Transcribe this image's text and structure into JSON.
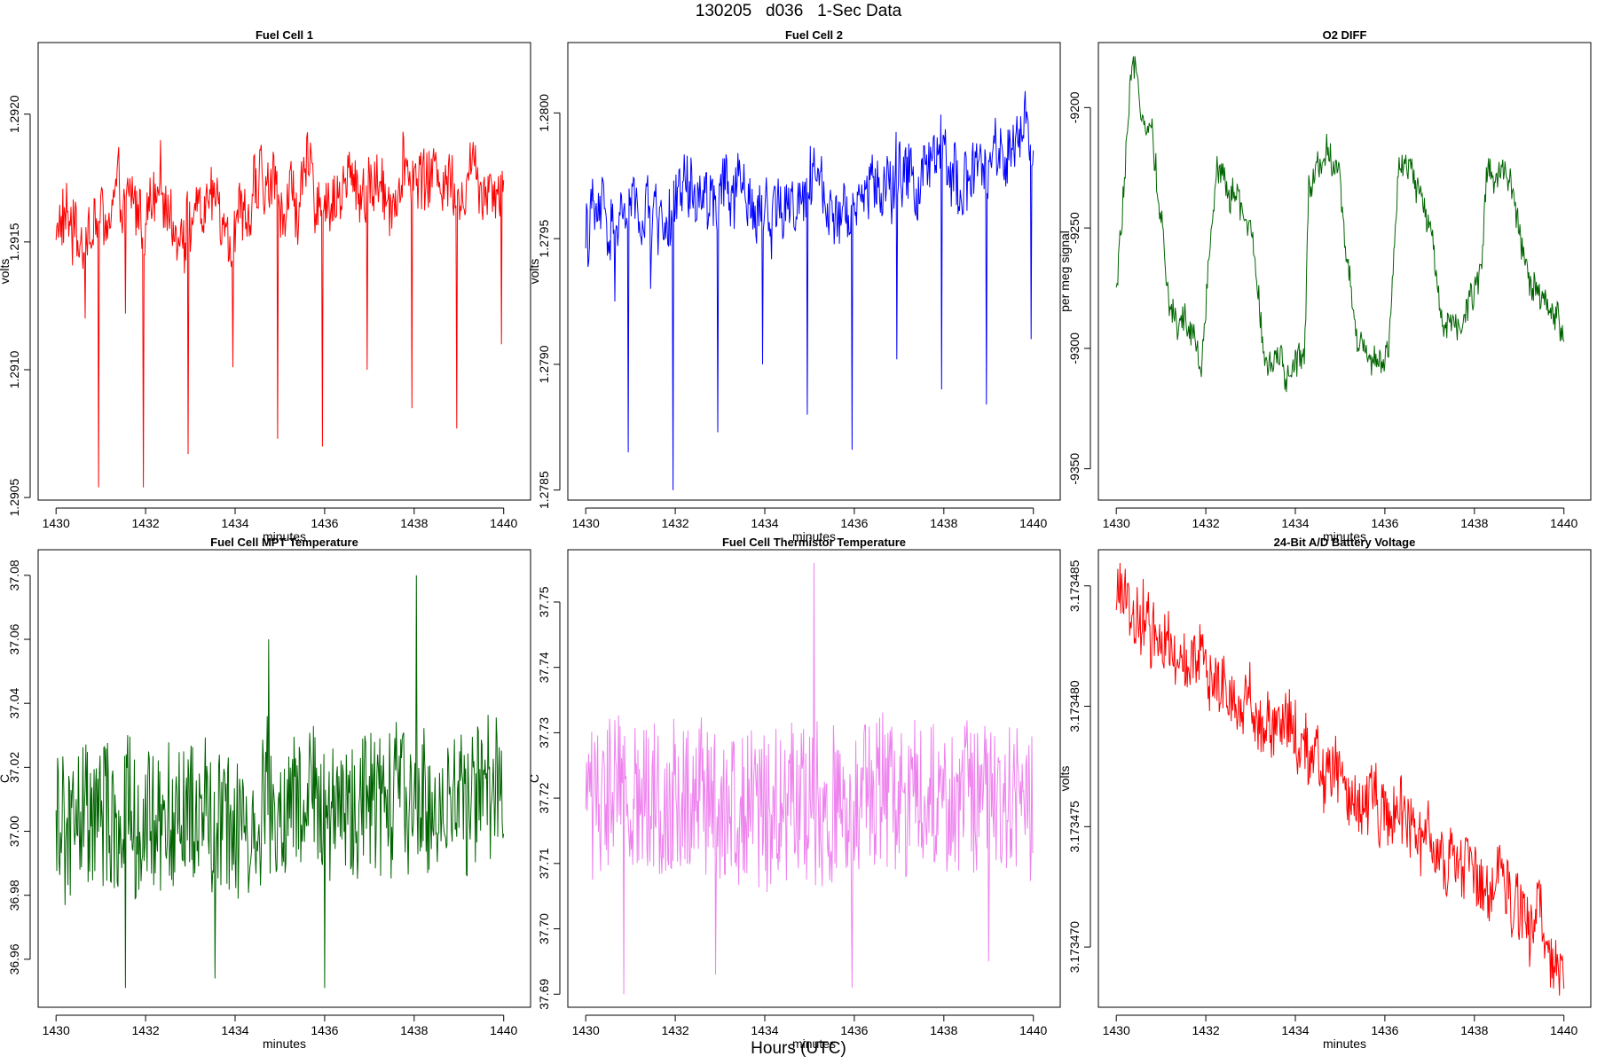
{
  "page": {
    "title": "130205   d036   1-Sec Data",
    "x_caption": "Hours (UTC)"
  },
  "chart_data": [
    {
      "type": "line",
      "title": "Fuel Cell 1",
      "xlabel": "minutes",
      "ylabel": "volts",
      "color": "#ff0000",
      "xlim": [
        1429.6,
        1440.6
      ],
      "ylim": [
        1.29049,
        1.29228
      ],
      "xticks": [
        1430,
        1432,
        1434,
        1436,
        1438,
        1440
      ],
      "yticks": [
        1.2905,
        1.291,
        1.2915,
        1.292
      ],
      "ytick_labels": [
        "1.2905",
        "1.2910",
        "1.2915",
        "1.2920"
      ],
      "series": [
        {
          "name": "Fuel Cell 1",
          "start": 1.29155,
          "end": 1.2918,
          "noise": 0.00022,
          "wander": 0.0001,
          "spikes": [
            [
              1430.95,
              1.29054
            ],
            [
              1431.95,
              1.29054
            ],
            [
              1432.95,
              1.29067
            ],
            [
              1433.95,
              1.29101
            ],
            [
              1434.95,
              1.29073
            ],
            [
              1435.95,
              1.2907
            ],
            [
              1436.95,
              1.291
            ],
            [
              1437.95,
              1.29085
            ],
            [
              1438.95,
              1.29077
            ],
            [
              1439.95,
              1.2911
            ],
            [
              1430.65,
              1.2912
            ],
            [
              1431.55,
              1.29122
            ]
          ]
        }
      ]
    },
    {
      "type": "line",
      "title": "Fuel Cell 2",
      "xlabel": "minutes",
      "ylabel": "volts",
      "color": "#0000ff",
      "xlim": [
        1429.6,
        1440.6
      ],
      "ylim": [
        1.27846,
        1.28028
      ],
      "xticks": [
        1430,
        1432,
        1434,
        1436,
        1438,
        1440
      ],
      "yticks": [
        1.2785,
        1.279,
        1.2795,
        1.28
      ],
      "ytick_labels": [
        "1.2785",
        "1.2790",
        "1.2795",
        "1.2800"
      ],
      "series": [
        {
          "name": "Fuel Cell 2",
          "start": 1.27955,
          "end": 1.2798,
          "noise": 0.00023,
          "wander": 0.0001,
          "spikes": [
            [
              1430.95,
              1.27865
            ],
            [
              1431.95,
              1.2785
            ],
            [
              1432.95,
              1.27873
            ],
            [
              1433.95,
              1.279
            ],
            [
              1434.95,
              1.2788
            ],
            [
              1435.95,
              1.27866
            ],
            [
              1436.95,
              1.27902
            ],
            [
              1437.95,
              1.2789
            ],
            [
              1438.95,
              1.27884
            ],
            [
              1439.95,
              1.2791
            ],
            [
              1430.65,
              1.27925
            ],
            [
              1431.45,
              1.2793
            ]
          ]
        }
      ]
    },
    {
      "type": "line",
      "title": "O2 DIFF",
      "xlabel": "minutes",
      "ylabel": "per meg signal",
      "color": "#006400",
      "xlim": [
        1429.6,
        1440.6
      ],
      "ylim": [
        -9363,
        -9173
      ],
      "xticks": [
        1430,
        1432,
        1434,
        1436,
        1438,
        1440
      ],
      "yticks": [
        -9350,
        -9300,
        -9250,
        -9200
      ],
      "ytick_labels": [
        "-9350",
        "-9300",
        "-9250",
        "-9200"
      ],
      "series": [
        {
          "name": "O2 DIFF",
          "noise": 11,
          "anchors": [
            [
              1430.0,
              -9280
            ],
            [
              1430.15,
              -9240
            ],
            [
              1430.35,
              -9190
            ],
            [
              1430.8,
              -9205
            ],
            [
              1431.0,
              -9245
            ],
            [
              1431.2,
              -9285
            ],
            [
              1431.6,
              -9290
            ],
            [
              1431.9,
              -9310
            ],
            [
              1432.25,
              -9220
            ],
            [
              1432.6,
              -9235
            ],
            [
              1433.0,
              -9250
            ],
            [
              1433.3,
              -9300
            ],
            [
              1433.8,
              -9315
            ],
            [
              1434.2,
              -9300
            ],
            [
              1434.3,
              -9230
            ],
            [
              1434.7,
              -9215
            ],
            [
              1435.0,
              -9230
            ],
            [
              1435.3,
              -9290
            ],
            [
              1435.8,
              -9305
            ],
            [
              1436.1,
              -9300
            ],
            [
              1436.3,
              -9230
            ],
            [
              1436.6,
              -9228
            ],
            [
              1437.0,
              -9250
            ],
            [
              1437.3,
              -9285
            ],
            [
              1437.8,
              -9290
            ],
            [
              1438.1,
              -9270
            ],
            [
              1438.3,
              -9225
            ],
            [
              1438.8,
              -9225
            ],
            [
              1439.0,
              -9250
            ],
            [
              1439.3,
              -9280
            ],
            [
              1439.95,
              -9290
            ]
          ]
        }
      ]
    },
    {
      "type": "line",
      "title": "Fuel Cell MPT Temperature",
      "xlabel": "minutes",
      "ylabel": "C",
      "color": "#006400",
      "xlim": [
        1429.6,
        1440.6
      ],
      "ylim": [
        36.945,
        37.088
      ],
      "xticks": [
        1430,
        1432,
        1434,
        1436,
        1438,
        1440
      ],
      "yticks": [
        36.96,
        36.98,
        37.0,
        37.02,
        37.04,
        37.06,
        37.08
      ],
      "ytick_labels": [
        "36.96",
        "36.98",
        "37.00",
        "37.02",
        "37.04",
        "37.06",
        "37.08"
      ],
      "series": [
        {
          "name": "MPT Temperature",
          "start": 37.0,
          "end": 37.01,
          "noise": 0.045,
          "wander": 0.006,
          "spikes": [
            [
              1438.05,
              37.08
            ],
            [
              1434.75,
              37.06
            ],
            [
              1436.0,
              36.951
            ],
            [
              1431.55,
              36.951
            ],
            [
              1433.55,
              36.954
            ]
          ]
        }
      ]
    },
    {
      "type": "line",
      "title": "Fuel Cell Thermistor Temperature",
      "xlabel": "minutes",
      "ylabel": "C",
      "color": "#ee82ee",
      "xlim": [
        1429.6,
        1440.6
      ],
      "ylim": [
        37.688,
        37.758
      ],
      "xticks": [
        1430,
        1432,
        1434,
        1436,
        1438,
        1440
      ],
      "yticks": [
        37.69,
        37.7,
        37.71,
        37.72,
        37.73,
        37.74,
        37.75
      ],
      "ytick_labels": [
        "37.69",
        "37.70",
        "37.71",
        "37.72",
        "37.73",
        "37.74",
        "37.75"
      ],
      "series": [
        {
          "name": "Thermistor Temperature",
          "start": 37.72,
          "end": 37.72,
          "noise": 0.024,
          "wander": 0.002,
          "spikes": [
            [
              1435.1,
              37.756
            ],
            [
              1430.85,
              37.69
            ],
            [
              1435.95,
              37.691
            ],
            [
              1439.0,
              37.695
            ],
            [
              1432.9,
              37.693
            ]
          ]
        }
      ]
    },
    {
      "type": "line",
      "title": "24-Bit A/D Battery Voltage",
      "xlabel": "minutes",
      "ylabel": "volts",
      "color": "#ff0000",
      "xlim": [
        1429.6,
        1440.6
      ],
      "ylim": [
        3.1734675,
        3.1734865
      ],
      "xticks": [
        1430,
        1432,
        1434,
        1436,
        1438,
        1440
      ],
      "yticks": [
        3.17347,
        3.173475,
        3.17348,
        3.173485
      ],
      "ytick_labels": [
        "3.173470",
        "3.173475",
        "3.173480",
        "3.173485"
      ],
      "series": [
        {
          "name": "Battery Voltage",
          "start": 3.1734845,
          "end": 3.1734697,
          "noise": 2.6e-06,
          "wander": 7e-07
        }
      ]
    }
  ]
}
